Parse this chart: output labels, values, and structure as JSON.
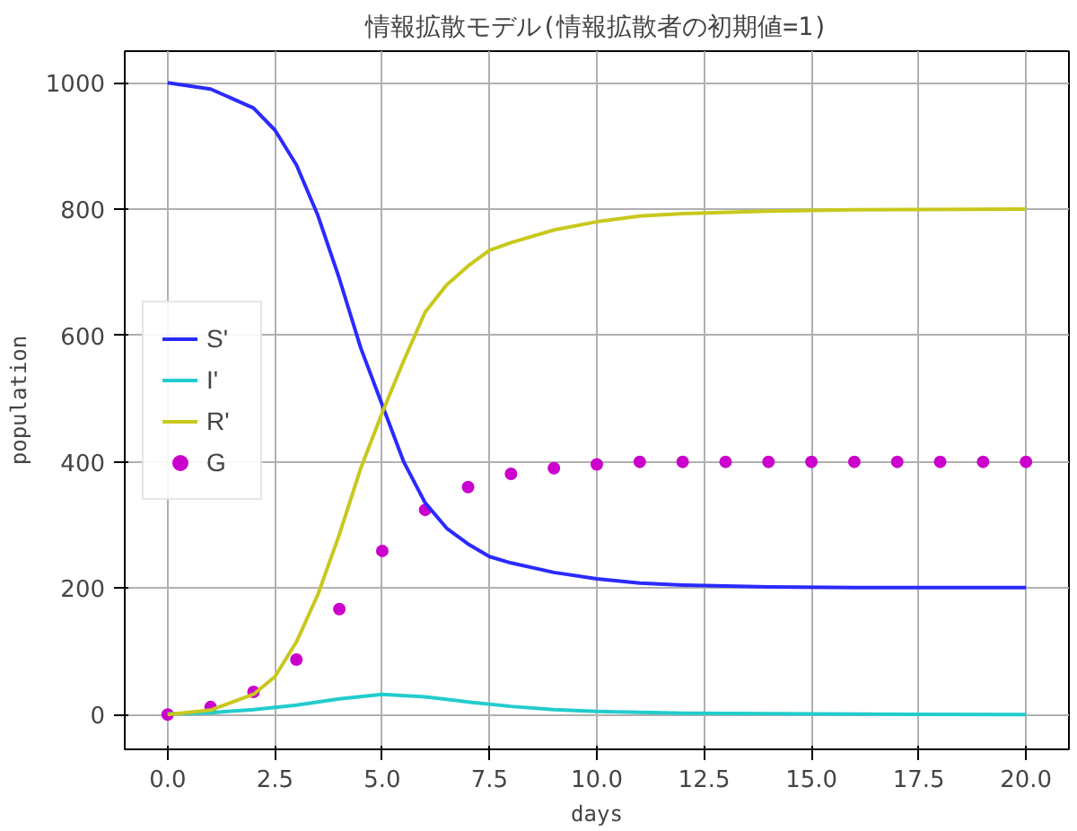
{
  "chart_data": {
    "type": "line",
    "title": "情報拡散モデル(情報拡散者の初期値=1)",
    "xlabel": "days",
    "ylabel": "population",
    "xlim": [
      -1,
      21
    ],
    "ylim": [
      -55,
      1050
    ],
    "xticks": [
      {
        "value": 0,
        "label": "0.0"
      },
      2.5,
      {
        "value": 5,
        "label": "5.0"
      },
      7.5,
      {
        "value": 10,
        "label": "10.0"
      },
      12.5,
      {
        "value": 15,
        "label": "15.0"
      },
      17.5,
      {
        "value": 20,
        "label": "20.0"
      }
    ],
    "yticks": [
      0,
      200,
      400,
      600,
      800,
      1000
    ],
    "grid": true,
    "legend": "left",
    "line_style": "solid",
    "series": [
      {
        "name": "S'",
        "color": "#2a2aff",
        "x": [
          0,
          1,
          2,
          2.5,
          3,
          3.5,
          4,
          4.5,
          5,
          5.5,
          6,
          6.5,
          7,
          7.5,
          8,
          9,
          10,
          11,
          12,
          14,
          16,
          20
        ],
        "values": [
          1000,
          990,
          960,
          925,
          870,
          790,
          690,
          580,
          490,
          400,
          335,
          295,
          270,
          250,
          240,
          225,
          215,
          208,
          205,
          202,
          201,
          201
        ]
      },
      {
        "name": "I'",
        "color": "#22cccc",
        "x": [
          0,
          1,
          2,
          3,
          4,
          5,
          6,
          7,
          8,
          9,
          10,
          12,
          15,
          20
        ],
        "values": [
          1,
          3,
          8,
          15,
          25,
          32,
          28,
          20,
          13,
          8,
          5,
          2,
          1,
          0
        ]
      },
      {
        "name": "R'",
        "color": "#c8c81e",
        "x": [
          0,
          1,
          2,
          2.5,
          3,
          3.5,
          4,
          4.5,
          5,
          5.5,
          6,
          6.5,
          7,
          7.5,
          8,
          9,
          10,
          11,
          12,
          14,
          16,
          20
        ],
        "values": [
          0,
          7,
          32,
          60,
          115,
          190,
          285,
          390,
          478,
          560,
          637,
          680,
          710,
          735,
          747,
          767,
          780,
          789,
          793,
          797,
          799,
          800
        ]
      },
      {
        "name": "G",
        "type": "scatter",
        "marker": "circle",
        "color": "#cc00cc",
        "x": [
          0,
          1,
          2,
          3,
          4,
          5,
          6,
          7,
          8,
          9,
          10,
          11,
          12,
          13,
          14,
          15,
          16,
          17,
          18,
          19,
          20
        ],
        "values": [
          0,
          12,
          36,
          87,
          167,
          259,
          324,
          360,
          381,
          390,
          396,
          400,
          400,
          400,
          400,
          400,
          400,
          400,
          400,
          400,
          400
        ]
      }
    ]
  }
}
